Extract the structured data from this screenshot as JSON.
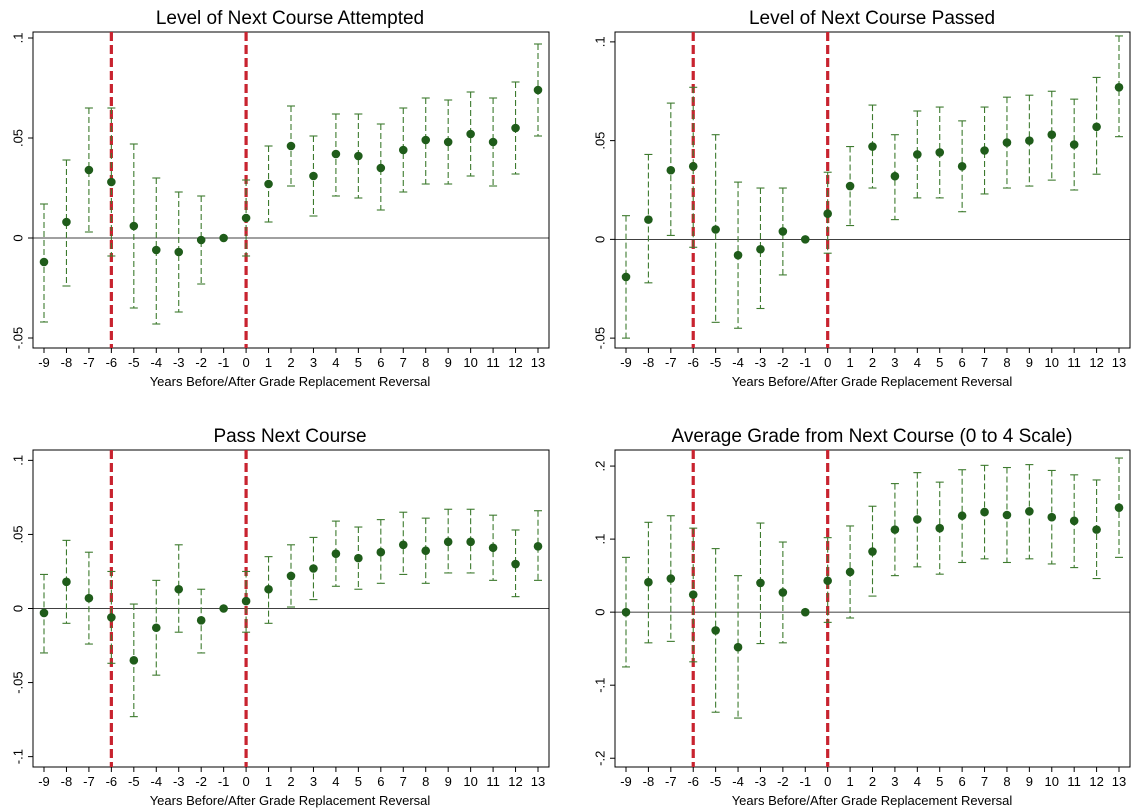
{
  "colors": {
    "point": "#1f5c1a",
    "ci": "#3d7a2e",
    "event_line": "#c8232f",
    "zero_line": "#000000",
    "frame": "#000000"
  },
  "chart_data": [
    {
      "type": "scatter",
      "title": "Level of Next Course Attempted",
      "xlabel": "Years Before/After Grade Replacement Reversal",
      "ylabel": "",
      "x": [
        -9,
        -8,
        -7,
        -6,
        -5,
        -4,
        -3,
        -2,
        -1,
        0,
        1,
        2,
        3,
        4,
        5,
        6,
        7,
        8,
        9,
        10,
        11,
        12,
        13
      ],
      "x_tick_labels": [
        "-9",
        "-8",
        "-7",
        "-6",
        "-5",
        "-4",
        "-3",
        "-2",
        "-1",
        "0",
        "1",
        "2",
        "3",
        "4",
        "5",
        "6",
        "7",
        "8",
        "9",
        "10",
        "11",
        "12",
        "13"
      ],
      "y_ticks": [
        -0.05,
        0,
        0.05,
        0.1
      ],
      "y_tick_labels": [
        "-.05",
        "0",
        ".05",
        ".1"
      ],
      "ylim": [
        -0.055,
        0.103
      ],
      "event_lines": [
        -6,
        0
      ],
      "y": [
        -0.012,
        0.008,
        0.034,
        0.028,
        0.006,
        -0.006,
        -0.007,
        -0.001,
        0,
        0.01,
        0.027,
        0.046,
        0.031,
        0.042,
        0.041,
        0.035,
        0.044,
        0.049,
        0.048,
        0.052,
        0.048,
        0.055,
        0.074
      ],
      "ci_low": [
        -0.042,
        -0.024,
        0.003,
        -0.009,
        -0.035,
        -0.043,
        -0.037,
        -0.023,
        0,
        -0.009,
        0.008,
        0.026,
        0.011,
        0.021,
        0.02,
        0.014,
        0.023,
        0.027,
        0.027,
        0.031,
        0.026,
        0.032,
        0.051
      ],
      "ci_high": [
        0.017,
        0.039,
        0.065,
        0.065,
        0.047,
        0.03,
        0.023,
        0.021,
        0,
        0.029,
        0.046,
        0.066,
        0.051,
        0.062,
        0.062,
        0.057,
        0.065,
        0.07,
        0.069,
        0.073,
        0.07,
        0.078,
        0.097
      ],
      "grid": false
    },
    {
      "type": "scatter",
      "title": "Level of Next Course Passed",
      "xlabel": "Years Before/After Grade Replacement Reversal",
      "ylabel": "",
      "x": [
        -9,
        -8,
        -7,
        -6,
        -5,
        -4,
        -3,
        -2,
        -1,
        0,
        1,
        2,
        3,
        4,
        5,
        6,
        7,
        8,
        9,
        10,
        11,
        12,
        13
      ],
      "x_tick_labels": [
        "-9",
        "-8",
        "-7",
        "-6",
        "-5",
        "-4",
        "-3",
        "-2",
        "-1",
        "0",
        "1",
        "2",
        "3",
        "4",
        "5",
        "6",
        "7",
        "8",
        "9",
        "10",
        "11",
        "12",
        "13"
      ],
      "y_ticks": [
        -0.05,
        0,
        0.05,
        0.1
      ],
      "y_tick_labels": [
        "-.05",
        "0",
        ".05",
        ".1"
      ],
      "ylim": [
        -0.055,
        0.105
      ],
      "event_lines": [
        -6,
        0
      ],
      "y": [
        -0.019,
        0.01,
        0.035,
        0.037,
        0.005,
        -0.008,
        -0.005,
        0.004,
        0,
        0.013,
        0.027,
        0.047,
        0.032,
        0.043,
        0.044,
        0.037,
        0.045,
        0.049,
        0.05,
        0.053,
        0.048,
        0.057,
        0.077
      ],
      "ci_low": [
        -0.05,
        -0.022,
        0.002,
        -0.004,
        -0.042,
        -0.045,
        -0.035,
        -0.018,
        0,
        -0.007,
        0.007,
        0.026,
        0.01,
        0.021,
        0.021,
        0.014,
        0.023,
        0.026,
        0.027,
        0.03,
        0.025,
        0.033,
        0.052
      ],
      "ci_high": [
        0.012,
        0.043,
        0.069,
        0.077,
        0.053,
        0.029,
        0.026,
        0.026,
        0,
        0.034,
        0.047,
        0.068,
        0.053,
        0.065,
        0.067,
        0.06,
        0.067,
        0.072,
        0.073,
        0.075,
        0.071,
        0.082,
        0.103
      ],
      "grid": false
    },
    {
      "type": "scatter",
      "title": "Pass Next Course",
      "xlabel": "Years Before/After Grade Replacement Reversal",
      "ylabel": "",
      "x": [
        -9,
        -8,
        -7,
        -6,
        -5,
        -4,
        -3,
        -2,
        -1,
        0,
        1,
        2,
        3,
        4,
        5,
        6,
        7,
        8,
        9,
        10,
        11,
        12,
        13
      ],
      "x_tick_labels": [
        "-9",
        "-8",
        "-7",
        "-6",
        "-5",
        "-4",
        "-3",
        "-2",
        "-1",
        "0",
        "1",
        "2",
        "3",
        "4",
        "5",
        "6",
        "7",
        "8",
        "9",
        "10",
        "11",
        "12",
        "13"
      ],
      "y_ticks": [
        -0.1,
        -0.05,
        0,
        0.05,
        0.1
      ],
      "y_tick_labels": [
        "-.1",
        "-.05",
        "0",
        ".05",
        ".1"
      ],
      "ylim": [
        -0.107,
        0.107
      ],
      "event_lines": [
        -6,
        0
      ],
      "y": [
        -0.003,
        0.018,
        0.007,
        -0.006,
        -0.035,
        -0.013,
        0.013,
        -0.008,
        0,
        0.005,
        0.013,
        0.022,
        0.027,
        0.037,
        0.034,
        0.038,
        0.043,
        0.039,
        0.045,
        0.045,
        0.041,
        0.03,
        0.042
      ],
      "ci_low": [
        -0.03,
        -0.01,
        -0.024,
        -0.037,
        -0.073,
        -0.045,
        -0.016,
        -0.03,
        0,
        -0.016,
        -0.01,
        0.001,
        0.006,
        0.015,
        0.013,
        0.017,
        0.023,
        0.017,
        0.024,
        0.024,
        0.019,
        0.008,
        0.019
      ],
      "ci_high": [
        0.023,
        0.046,
        0.038,
        0.025,
        0.003,
        0.019,
        0.043,
        0.013,
        0,
        0.025,
        0.035,
        0.043,
        0.048,
        0.059,
        0.055,
        0.06,
        0.065,
        0.061,
        0.067,
        0.067,
        0.063,
        0.053,
        0.066
      ],
      "grid": false
    },
    {
      "type": "scatter",
      "title": "Average Grade from Next Course (0 to 4 Scale)",
      "xlabel": "Years Before/After Grade Replacement Reversal",
      "ylabel": "",
      "x": [
        -9,
        -8,
        -7,
        -6,
        -5,
        -4,
        -3,
        -2,
        -1,
        0,
        1,
        2,
        3,
        4,
        5,
        6,
        7,
        8,
        9,
        10,
        11,
        12,
        13
      ],
      "x_tick_labels": [
        "-9",
        "-8",
        "-7",
        "-6",
        "-5",
        "-4",
        "-3",
        "-2",
        "-1",
        "0",
        "1",
        "2",
        "3",
        "4",
        "5",
        "6",
        "7",
        "8",
        "9",
        "10",
        "11",
        "12",
        "13"
      ],
      "y_ticks": [
        -0.2,
        -0.1,
        0,
        0.1,
        0.2
      ],
      "y_tick_labels": [
        "-.2",
        "-.1",
        "0",
        ".1",
        ".2"
      ],
      "ylim": [
        -0.212,
        0.222
      ],
      "event_lines": [
        -6,
        0
      ],
      "y": [
        0.0,
        0.041,
        0.046,
        0.024,
        -0.025,
        -0.048,
        0.04,
        0.027,
        0,
        0.043,
        0.055,
        0.083,
        0.113,
        0.127,
        0.115,
        0.132,
        0.137,
        0.133,
        0.138,
        0.13,
        0.125,
        0.113,
        0.143
      ],
      "ci_low": [
        -0.075,
        -0.042,
        -0.04,
        -0.068,
        -0.137,
        -0.145,
        -0.043,
        -0.042,
        0,
        -0.014,
        -0.008,
        0.022,
        0.05,
        0.062,
        0.052,
        0.068,
        0.073,
        0.068,
        0.073,
        0.066,
        0.061,
        0.046,
        0.075
      ],
      "ci_high": [
        0.075,
        0.123,
        0.132,
        0.115,
        0.087,
        0.05,
        0.122,
        0.096,
        0,
        0.102,
        0.118,
        0.145,
        0.176,
        0.191,
        0.178,
        0.195,
        0.201,
        0.198,
        0.202,
        0.194,
        0.188,
        0.181,
        0.211
      ],
      "grid": false
    }
  ]
}
